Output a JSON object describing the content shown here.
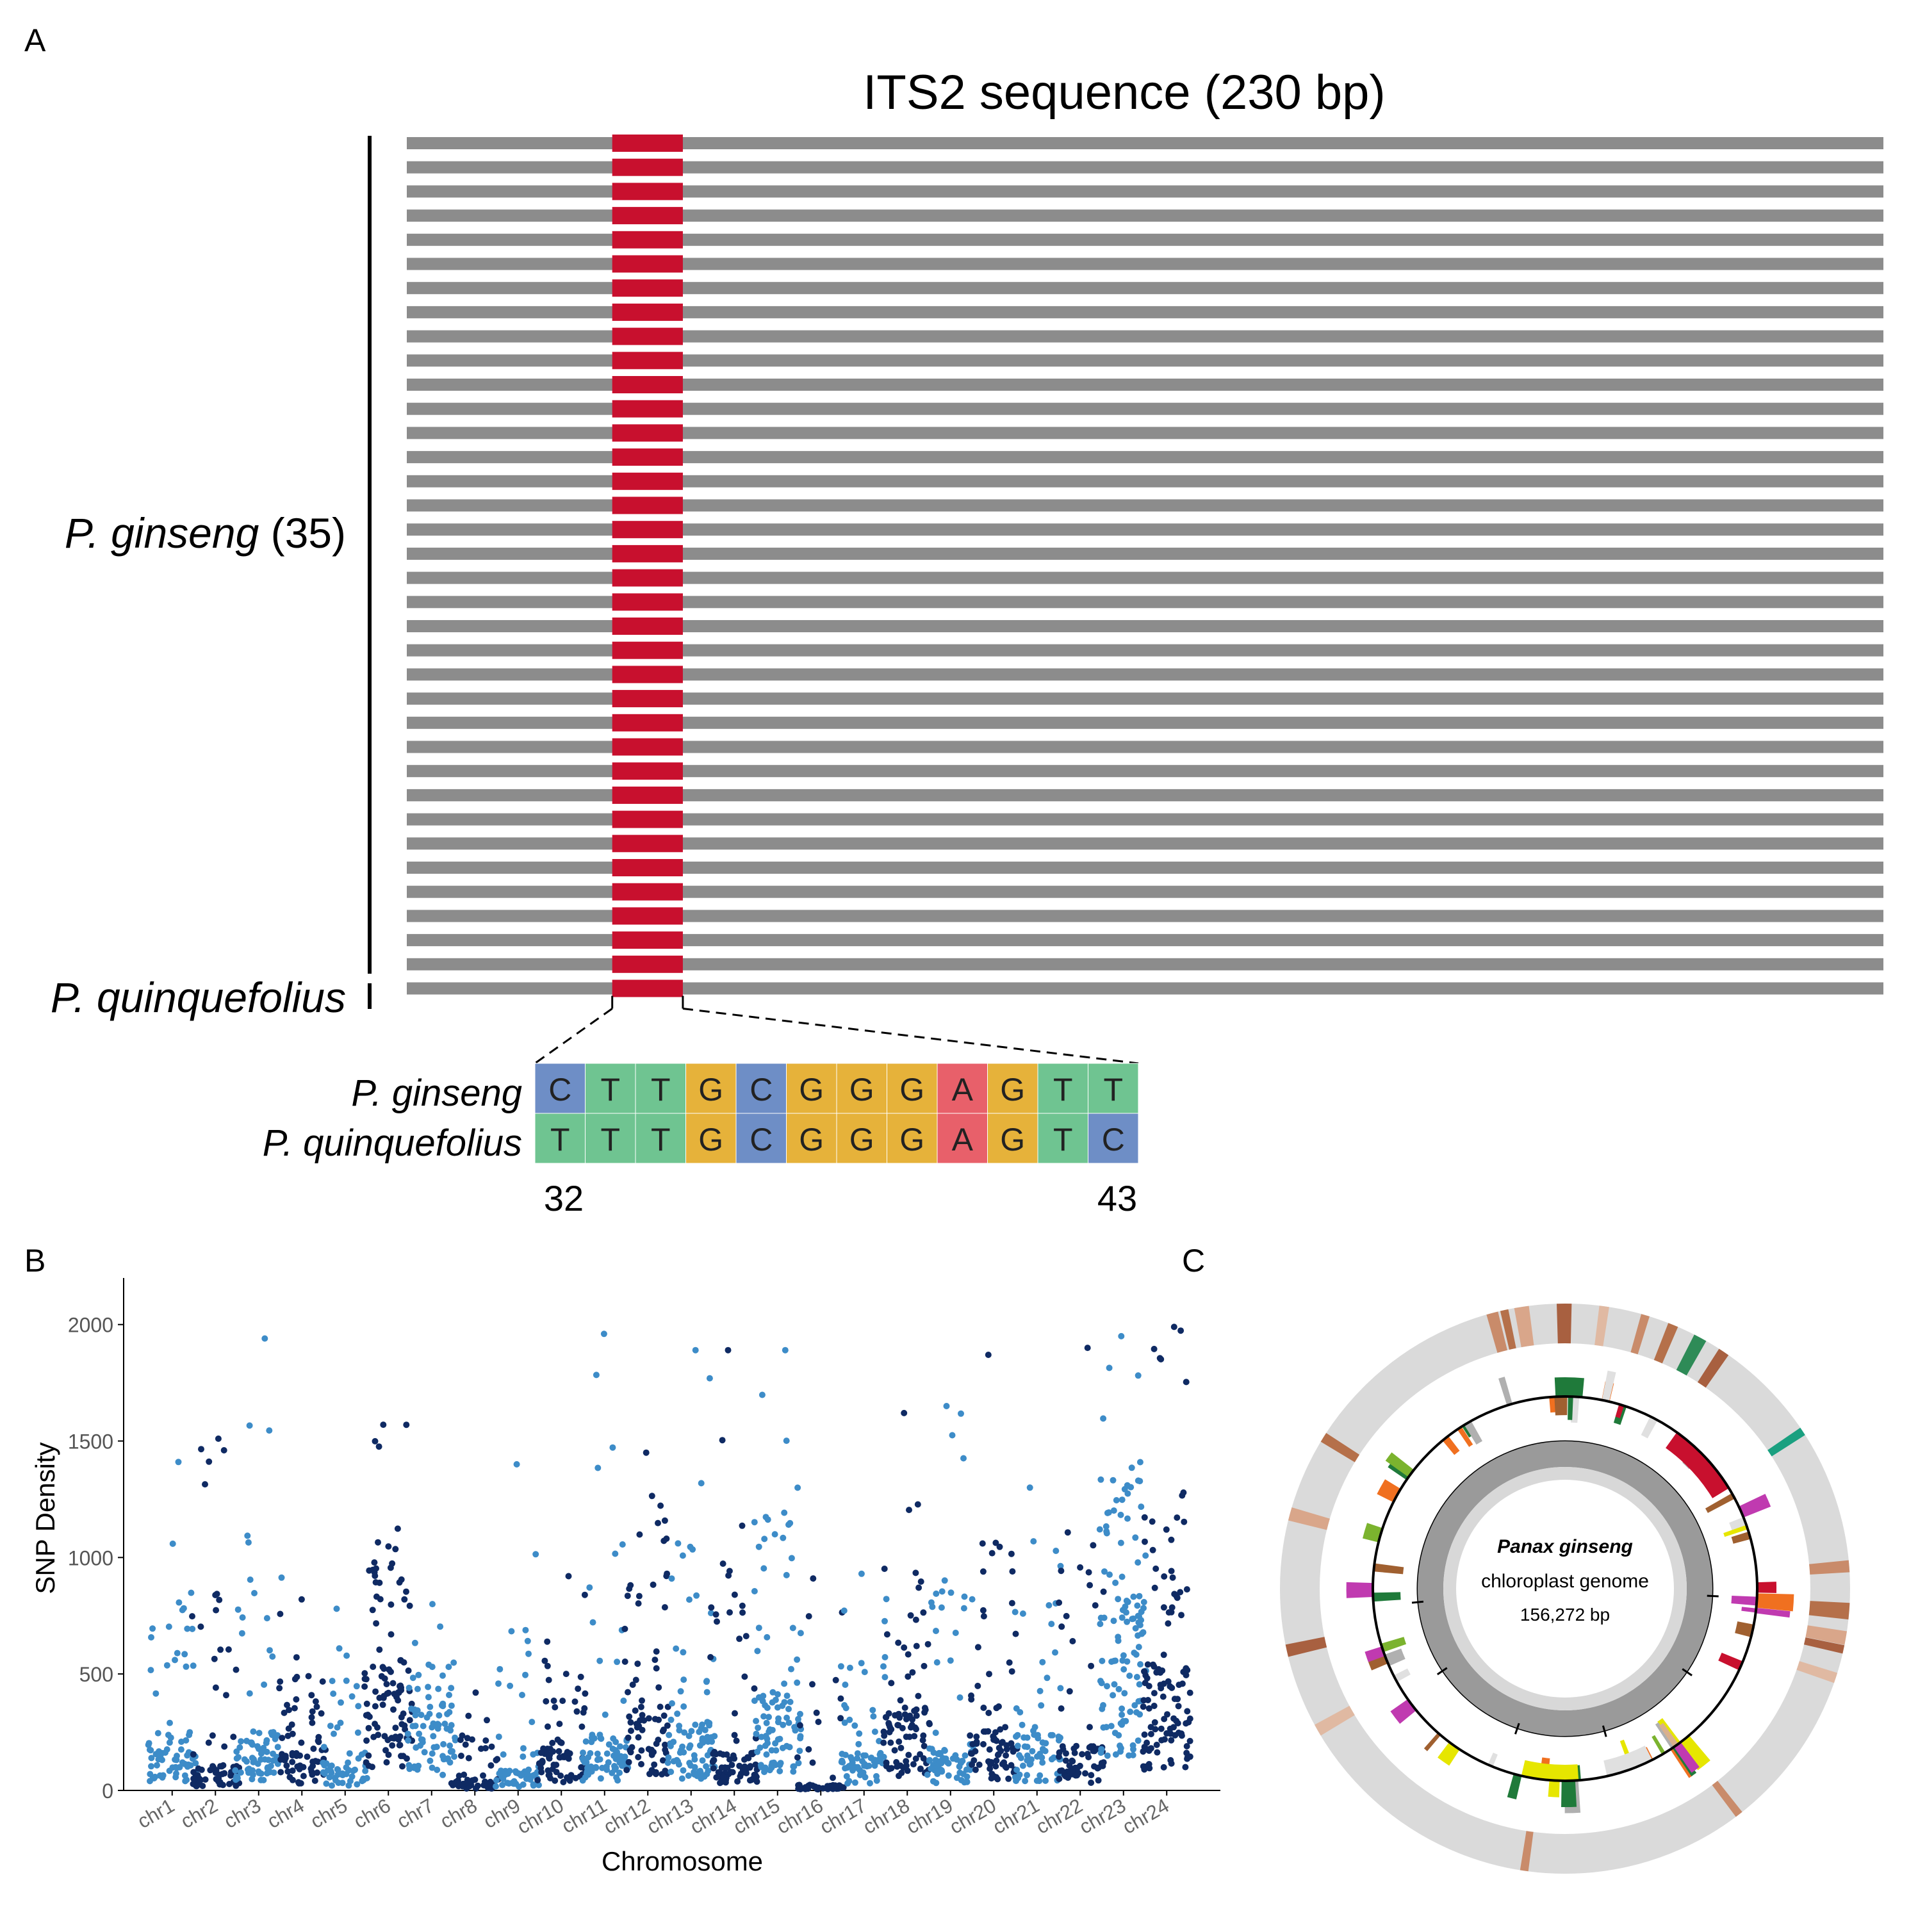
{
  "panels": {
    "a": "A",
    "b": "B",
    "c": "C"
  },
  "panel_a": {
    "title": "ITS2 sequence (230 bp)",
    "group1_italic": "P. ginseng",
    "group1_count": "(35)",
    "group2_italic": "P. quinquefolius",
    "bar_color": "#8c8c8c",
    "highlight_color": "#c8102e",
    "alignment": {
      "row1_label": "P. ginseng",
      "row2_label": "P. quinquefolius",
      "row1": [
        "C",
        "T",
        "T",
        "G",
        "C",
        "G",
        "G",
        "G",
        "A",
        "G",
        "T",
        "T"
      ],
      "row2": [
        "T",
        "T",
        "T",
        "G",
        "C",
        "G",
        "G",
        "G",
        "A",
        "G",
        "T",
        "C"
      ],
      "start_pos": "32",
      "end_pos": "43",
      "base_colors": {
        "A": "#e8606a",
        "C": "#6e8ec6",
        "G": "#e6b23a",
        "T": "#6fc491"
      }
    }
  },
  "chart_data": [
    {
      "type": "bar",
      "title": "ITS2 sequence (230 bp)",
      "categories": [
        "P. ginseng (35)",
        "P. quinquefolius"
      ],
      "values": [
        35,
        1
      ],
      "highlight_region_bp": [
        32,
        43
      ],
      "sequence_length_bp": 230
    },
    {
      "type": "scatter",
      "xlabel": "Chromosome",
      "ylabel": "SNP Density",
      "ylim": [
        0,
        2200
      ],
      "yticks": [
        0,
        500,
        1000,
        1500,
        2000
      ],
      "categories": [
        "chr1",
        "chr2",
        "chr3",
        "chr4",
        "chr5",
        "chr6",
        "chr7",
        "chr8",
        "chr9",
        "chr10",
        "chr11",
        "chr12",
        "chr13",
        "chr14",
        "chr15",
        "chr16",
        "chr17",
        "chr18",
        "chr19",
        "chr20",
        "chr21",
        "chr22",
        "chr23",
        "chr24"
      ],
      "colors": {
        "odd": "#3d8cc8",
        "even": "#0f2a63"
      },
      "chromosome_profiles": [
        {
          "base": 200,
          "peak": 1410,
          "n": 80
        },
        {
          "base": 90,
          "peak": 1510,
          "n": 70
        },
        {
          "base": 220,
          "peak": 1940,
          "n": 80
        },
        {
          "base": 150,
          "peak": 820,
          "n": 70
        },
        {
          "base": 100,
          "peak": 780,
          "n": 60
        },
        {
          "base": 450,
          "peak": 1570,
          "n": 110
        },
        {
          "base": 310,
          "peak": 800,
          "n": 80
        },
        {
          "base": 40,
          "peak": 420,
          "n": 60
        },
        {
          "base": 80,
          "peak": 1400,
          "n": 60
        },
        {
          "base": 150,
          "peak": 920,
          "n": 80
        },
        {
          "base": 200,
          "peak": 1960,
          "n": 80
        },
        {
          "base": 300,
          "peak": 1450,
          "n": 80
        },
        {
          "base": 250,
          "peak": 1890,
          "n": 90
        },
        {
          "base": 140,
          "peak": 1890,
          "n": 80
        },
        {
          "base": 350,
          "peak": 1890,
          "n": 100
        },
        {
          "base": 20,
          "peak": 910,
          "n": 60
        },
        {
          "base": 140,
          "peak": 930,
          "n": 70
        },
        {
          "base": 300,
          "peak": 1620,
          "n": 90
        },
        {
          "base": 150,
          "peak": 1650,
          "n": 80
        },
        {
          "base": 220,
          "peak": 1870,
          "n": 80
        },
        {
          "base": 200,
          "peak": 1300,
          "n": 70
        },
        {
          "base": 160,
          "peak": 1900,
          "n": 70
        },
        {
          "base": 700,
          "peak": 1950,
          "n": 120
        },
        {
          "base": 450,
          "peak": 1990,
          "n": 120
        }
      ]
    }
  ],
  "panel_c": {
    "title_italic": "Panax ginseng",
    "subtitle": "chloroplast genome",
    "size": "156,272 bp",
    "outer_ring_color": "#dadada",
    "gc_ring_color": "#9a9a9a",
    "gene_colors": [
      "#c8102e",
      "#1f7a3a",
      "#7bb32e",
      "#e6e600",
      "#f07020",
      "#a06030",
      "#c03ab0",
      "#d9b08c",
      "#b0b0b0",
      "#e0e0e0"
    ]
  }
}
